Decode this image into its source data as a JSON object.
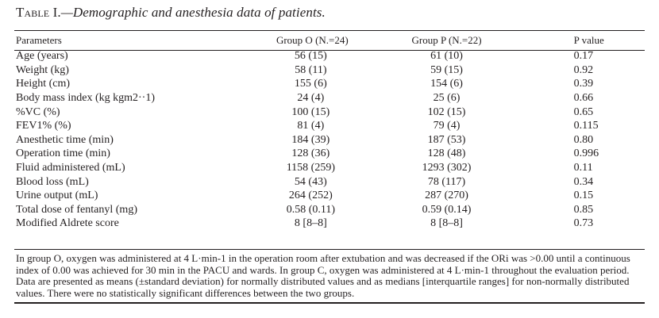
{
  "table": {
    "number": "Table I.",
    "caption": "—Demographic and anesthesia data of patients.",
    "headers": [
      "Parameters",
      "Group O (N.=24)",
      "Group P (N.=22)",
      "P value"
    ],
    "rows": [
      [
        "Age (years)",
        "56 (15)",
        "61 (10)",
        "0.17"
      ],
      [
        "Weight (kg)",
        "58 (11)",
        "59 (15)",
        "0.92"
      ],
      [
        "Height (cm)",
        "155 (6)",
        "154 (6)",
        "0.39"
      ],
      [
        "Body mass index (kg kgm2··1)",
        "24 (4)",
        "25 (6)",
        "0.66"
      ],
      [
        "%VC (%)",
        "100 (15)",
        "102 (15)",
        "0.65"
      ],
      [
        "FEV1% (%)",
        "81 (4)",
        "79 (4)",
        "0.115"
      ],
      [
        "Anesthetic time (min)",
        "184 (39)",
        "187 (53)",
        "0.80"
      ],
      [
        "Operation time (min)",
        "128 (36)",
        "128 (48)",
        "0.996"
      ],
      [
        "Fluid administered (mL)",
        "1158 (259)",
        "1293 (302)",
        "0.11"
      ],
      [
        "Blood loss (mL)",
        "54 (43)",
        "78 (117)",
        "0.34"
      ],
      [
        "Urine output (mL)",
        "264 (252)",
        "287 (270)",
        "0.15"
      ],
      [
        "Total dose of fentanyl (mg)",
        "0.58 (0.11)",
        "0.59 (0.14)",
        "0.85"
      ],
      [
        "Modified Aldrete score",
        "8 [8–8]",
        "8 [8–8]",
        "0.73"
      ]
    ],
    "footnote": "In group O, oxygen was administered at 4 L·min-1 in the operation room after extubation and was decreased if the ORi was >0.00 until a continuous index of 0.00 was achieved for 30 min in the PACU and wards. In group C, oxygen was administered at 4 L·min-1 throughout the evaluation period. Data are presented as means (±standard deviation) for normally distributed values and as medians [interquartile ranges] for non-normally distributed values. There were no statistically significant differences between the two groups."
  }
}
